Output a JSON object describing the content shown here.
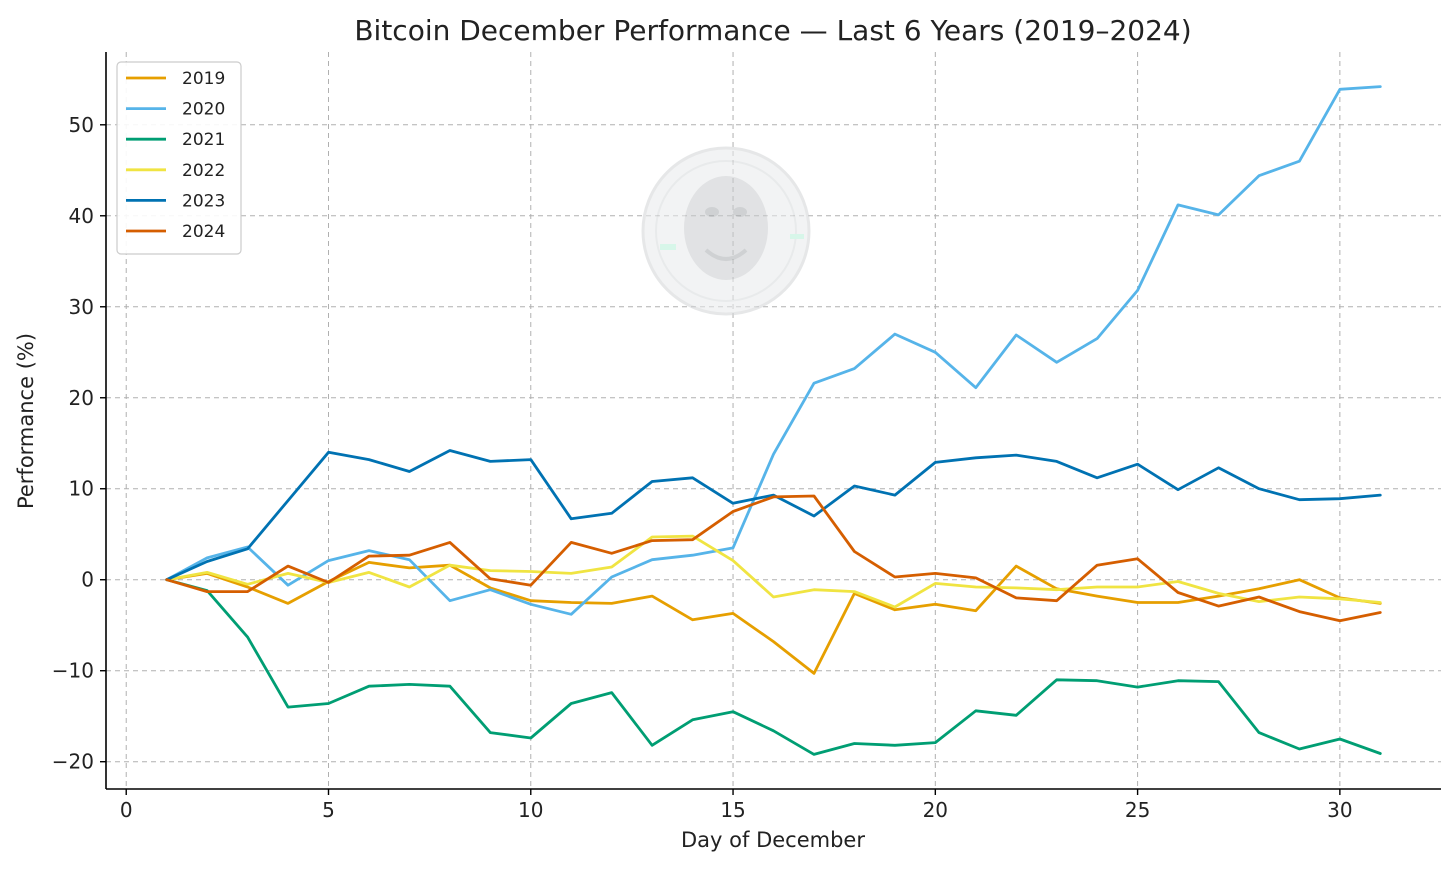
{
  "chart_data": {
    "type": "line",
    "title": "Bitcoin December Performance — Last 6 Years (2019–2024)",
    "xlabel": "Day of December",
    "ylabel": "Performance (%)",
    "xlim": [
      -0.5,
      32.5
    ],
    "ylim": [
      -23,
      58
    ],
    "xticks": [
      0,
      5,
      10,
      15,
      20,
      25,
      30
    ],
    "yticks": [
      -20,
      -10,
      0,
      10,
      20,
      30,
      40,
      50
    ],
    "xtick_labels": [
      "0",
      "5",
      "10",
      "15",
      "20",
      "25",
      "30"
    ],
    "ytick_labels": [
      "−20",
      "−10",
      "0",
      "10",
      "20",
      "30",
      "40",
      "50"
    ],
    "grid": true,
    "legend_position": "top-left",
    "x": [
      1,
      2,
      3,
      4,
      5,
      6,
      7,
      8,
      9,
      10,
      11,
      12,
      13,
      14,
      15,
      16,
      17,
      18,
      19,
      20,
      21,
      22,
      23,
      24,
      25,
      26,
      27,
      28,
      29,
      30,
      31
    ],
    "series": [
      {
        "name": "2019",
        "color": "#E69F00",
        "values": [
          0,
          0.7,
          -0.8,
          -2.6,
          -0.2,
          1.9,
          1.3,
          1.6,
          -0.9,
          -2.3,
          -2.5,
          -2.6,
          -1.8,
          -4.4,
          -3.7,
          -6.8,
          -10.3,
          -1.5,
          -3.3,
          -2.7,
          -3.4,
          1.5,
          -1.0,
          -1.8,
          -2.5,
          -2.5,
          -1.8,
          -1.0,
          0.0,
          -2.0,
          -2.6
        ]
      },
      {
        "name": "2020",
        "color": "#56B4E9",
        "values": [
          0,
          2.4,
          3.6,
          -0.6,
          2.1,
          3.2,
          2.2,
          -2.3,
          -1.1,
          -2.7,
          -3.8,
          0.3,
          2.2,
          2.7,
          3.5,
          13.8,
          21.6,
          23.2,
          27.0,
          25.0,
          21.1,
          26.9,
          23.9,
          26.5,
          31.8,
          41.2,
          40.1,
          44.4,
          46.0,
          53.9,
          54.2
        ]
      },
      {
        "name": "2021",
        "color": "#009E73",
        "values": [
          0,
          -1.2,
          -6.3,
          -14.0,
          -13.6,
          -11.7,
          -11.5,
          -11.7,
          -16.8,
          -17.4,
          -13.6,
          -12.4,
          -18.2,
          -15.4,
          -14.5,
          -16.6,
          -19.2,
          -18.0,
          -18.2,
          -17.9,
          -14.4,
          -14.9,
          -11.0,
          -11.1,
          -11.8,
          -11.1,
          -11.2,
          -16.8,
          -18.6,
          -17.5,
          -19.1
        ]
      },
      {
        "name": "2022",
        "color": "#F0E442",
        "values": [
          0,
          0.8,
          -0.5,
          0.7,
          -0.3,
          0.8,
          -0.8,
          1.6,
          1.0,
          0.9,
          0.7,
          1.4,
          4.7,
          4.8,
          2.1,
          -1.9,
          -1.1,
          -1.3,
          -3.0,
          -0.4,
          -0.8,
          -0.9,
          -1.1,
          -0.8,
          -0.8,
          -0.2,
          -1.5,
          -2.4,
          -1.9,
          -2.1,
          -2.5
        ]
      },
      {
        "name": "2023",
        "color": "#0072B2",
        "values": [
          0,
          2.0,
          3.4,
          8.7,
          14.0,
          13.2,
          11.9,
          14.2,
          13.0,
          13.2,
          6.7,
          7.3,
          10.8,
          11.2,
          8.4,
          9.3,
          7.0,
          10.3,
          9.3,
          12.9,
          13.4,
          13.7,
          13.0,
          11.2,
          12.7,
          9.9,
          12.3,
          10.0,
          8.8,
          8.9,
          9.3
        ]
      },
      {
        "name": "2024",
        "color": "#D55E00",
        "values": [
          0,
          -1.3,
          -1.3,
          1.5,
          -0.3,
          2.6,
          2.7,
          4.1,
          0.1,
          -0.6,
          4.1,
          2.9,
          4.3,
          4.4,
          7.5,
          9.1,
          9.2,
          3.1,
          0.3,
          0.7,
          0.2,
          -2.0,
          -2.3,
          1.6,
          2.3,
          -1.4,
          -2.9,
          -1.9,
          -3.5,
          -4.5,
          -3.6
        ]
      }
    ]
  }
}
